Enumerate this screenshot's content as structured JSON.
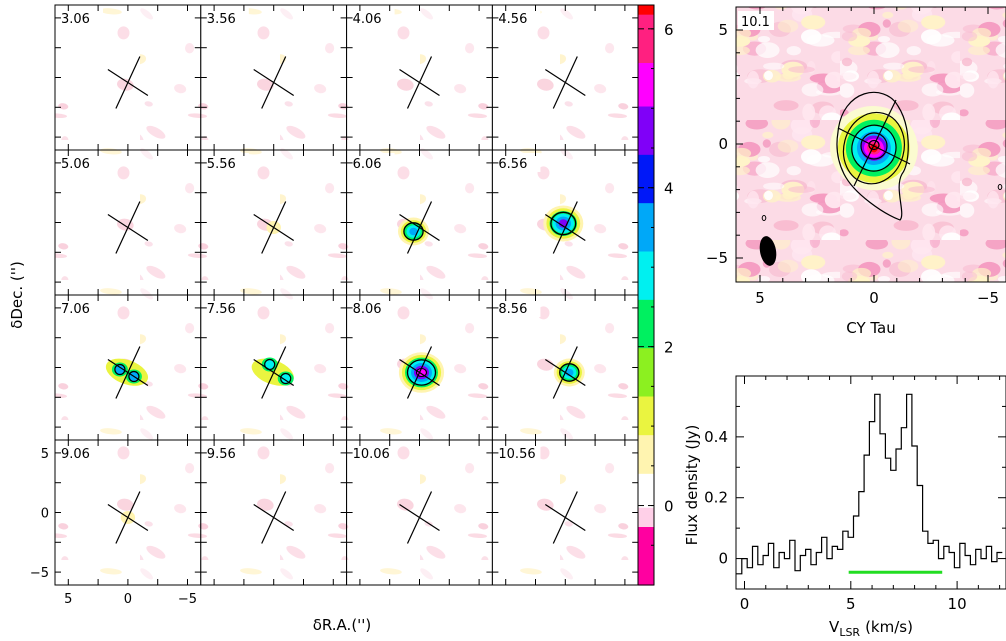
{
  "channel_maps": {
    "velocities": [
      "3.06",
      "3.56",
      "4.06",
      "4.56",
      "5.06",
      "5.56",
      "6.06",
      "6.56",
      "7.06",
      "7.56",
      "8.06",
      "8.56",
      "9.06",
      "9.56",
      "10.06",
      "10.56"
    ],
    "peak_intensity": [
      0,
      0,
      0,
      0,
      0.3,
      1.0,
      3.6,
      5.0,
      3.2,
      3.0,
      5.8,
      3.6,
      1.0,
      0.3,
      0,
      0
    ],
    "xlabel": "δR.A.('')",
    "ylabel": "δDec. ('')",
    "x_ticks": [
      "5",
      "0",
      "−5"
    ],
    "y_ticks": [
      "5",
      "0",
      "−5"
    ],
    "colorbar_ticks": [
      "6",
      "4",
      "2",
      "0"
    ],
    "colorbar_range": [
      -1,
      6.3
    ]
  },
  "moment_map": {
    "label": "10.1",
    "title": "CY Tau",
    "x_ticks": [
      "5",
      "0",
      "−5"
    ],
    "y_ticks": [
      "5",
      "0",
      "−5"
    ]
  },
  "chart_data": {
    "type": "line",
    "xlabel_main": "V",
    "xlabel_sub": "LSR",
    "xlabel_units": "(km/s)",
    "ylabel": "Flux density (Jy)",
    "xlim": [
      -0.4,
      12.3
    ],
    "ylim": [
      -0.1,
      0.6
    ],
    "x_ticks": [
      "0",
      "5",
      "10"
    ],
    "y_ticks": [
      "0",
      "0.2",
      "0.4"
    ],
    "x": [
      -0.25,
      0,
      0.25,
      0.5,
      0.75,
      1,
      1.25,
      1.5,
      1.75,
      2,
      2.25,
      2.5,
      2.75,
      3,
      3.25,
      3.5,
      3.75,
      4,
      4.25,
      4.5,
      4.75,
      5,
      5.25,
      5.5,
      5.75,
      6,
      6.25,
      6.5,
      6.75,
      7,
      7.25,
      7.5,
      7.75,
      8,
      8.25,
      8.5,
      8.75,
      9,
      9.25,
      9.5,
      9.75,
      10,
      10.25,
      10.5,
      10.75,
      11,
      11.25,
      11.5,
      11.75,
      12
    ],
    "y": [
      -0.05,
      0.0,
      -0.03,
      0.04,
      -0.02,
      0.01,
      0.05,
      -0.03,
      0.02,
      0.0,
      0.06,
      -0.04,
      0.01,
      0.03,
      -0.02,
      0.02,
      0.07,
      0.0,
      0.04,
      0.03,
      0.09,
      0.07,
      0.14,
      0.22,
      0.34,
      0.45,
      0.54,
      0.41,
      0.33,
      0.29,
      0.36,
      0.43,
      0.54,
      0.37,
      0.24,
      0.09,
      0.05,
      0.06,
      0.0,
      0.04,
      0.02,
      -0.03,
      0.05,
      0.01,
      -0.02,
      0.03,
      0.0,
      0.04,
      -0.01,
      0.02
    ],
    "integration_range": [
      4.9,
      9.3
    ],
    "integration_color": "#22dd22"
  },
  "colors": {
    "colormap": [
      "#ff00a0",
      "#ffffff",
      "#ffe880",
      "#eaf440",
      "#8cf020",
      "#00f040",
      "#00f0f0",
      "#00a8f8",
      "#0010f8",
      "#8000f8",
      "#ff00ff",
      "#ff2080",
      "#ff0000"
    ]
  }
}
